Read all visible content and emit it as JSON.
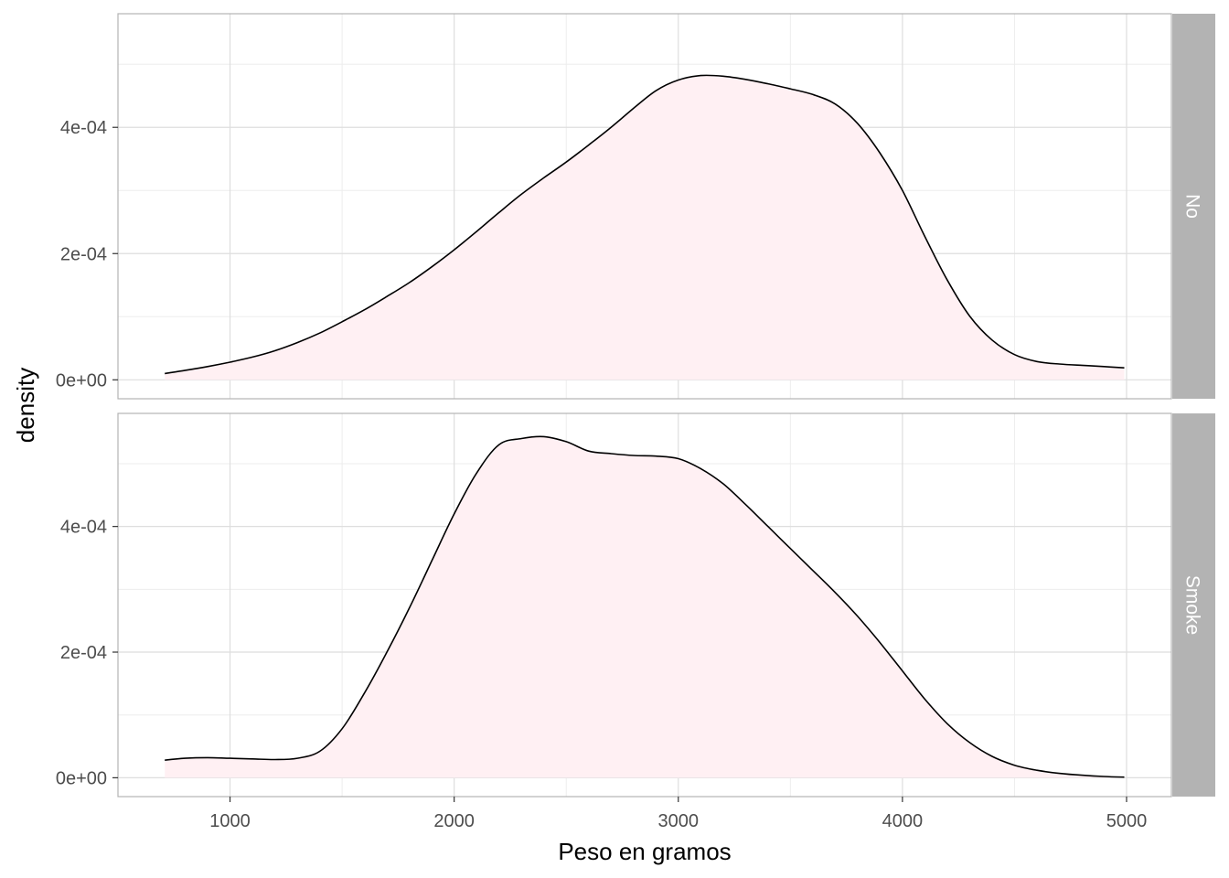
{
  "chart_data": {
    "type": "area",
    "xlabel": "Peso en gramos",
    "ylabel": "density",
    "xlim": [
      500,
      5200
    ],
    "x_ticks": [
      1000,
      2000,
      3000,
      4000,
      5000
    ],
    "x_tick_labels": [
      "1000",
      "2000",
      "3000",
      "4000",
      "5000"
    ],
    "y_ticks": [
      0,
      0.0002,
      0.0004
    ],
    "y_tick_labels": [
      "0e+00",
      "2e-04",
      "4e-04"
    ],
    "ylim": [
      -3e-05,
      0.00058
    ],
    "grid": true,
    "fill_color": "#fff0f3",
    "line_color": "#000000",
    "strip_color": "#b3b3b3",
    "panels": [
      {
        "name": "No",
        "x": [
          709,
          800,
          900,
          1000,
          1100,
          1200,
          1300,
          1400,
          1500,
          1600,
          1700,
          1800,
          1900,
          2000,
          2100,
          2200,
          2300,
          2400,
          2500,
          2600,
          2700,
          2800,
          2900,
          3000,
          3100,
          3200,
          3300,
          3400,
          3500,
          3600,
          3700,
          3800,
          3900,
          4000,
          4100,
          4200,
          4300,
          4400,
          4500,
          4600,
          4700,
          4800,
          4900,
          4990
        ],
        "y": [
          1e-05,
          1.5e-05,
          2.1e-05,
          2.8e-05,
          3.6e-05,
          4.6e-05,
          5.9e-05,
          7.4e-05,
          9.2e-05,
          0.000111,
          0.000132,
          0.000154,
          0.000179,
          0.000206,
          0.000235,
          0.000265,
          0.000294,
          0.00032,
          0.000345,
          0.000372,
          0.0004,
          0.00043,
          0.000458,
          0.000475,
          0.000482,
          0.000481,
          0.000476,
          0.000469,
          0.000461,
          0.000452,
          0.000437,
          0.000406,
          0.000359,
          0.0003,
          0.000227,
          0.000158,
          0.000101,
          6.3e-05,
          4e-05,
          2.9e-05,
          2.5e-05,
          2.3e-05,
          2.1e-05,
          1.9e-05
        ]
      },
      {
        "name": "Smoke",
        "x": [
          709,
          800,
          900,
          1000,
          1100,
          1200,
          1300,
          1400,
          1500,
          1600,
          1700,
          1800,
          1900,
          2000,
          2100,
          2200,
          2300,
          2400,
          2500,
          2600,
          2700,
          2800,
          2900,
          3000,
          3100,
          3200,
          3300,
          3400,
          3500,
          3600,
          3700,
          3800,
          3900,
          4000,
          4100,
          4200,
          4300,
          4400,
          4500,
          4600,
          4700,
          4800,
          4900,
          4990
        ],
        "y": [
          2.8e-05,
          3.1e-05,
          3.2e-05,
          3.1e-05,
          3e-05,
          2.9e-05,
          3.1e-05,
          4.2e-05,
          7.8e-05,
          0.000135,
          0.0002,
          0.00027,
          0.000345,
          0.00042,
          0.000485,
          0.00053,
          0.00054,
          0.000543,
          0.000535,
          0.00052,
          0.000516,
          0.000513,
          0.000512,
          0.000508,
          0.000492,
          0.000468,
          0.000435,
          0.0004,
          0.000365,
          0.00033,
          0.000295,
          0.000257,
          0.000215,
          0.00017,
          0.000125,
          8.6e-05,
          5.6e-05,
          3.4e-05,
          2e-05,
          1.2e-05,
          7e-06,
          4e-06,
          2e-06,
          1e-06
        ]
      }
    ]
  }
}
